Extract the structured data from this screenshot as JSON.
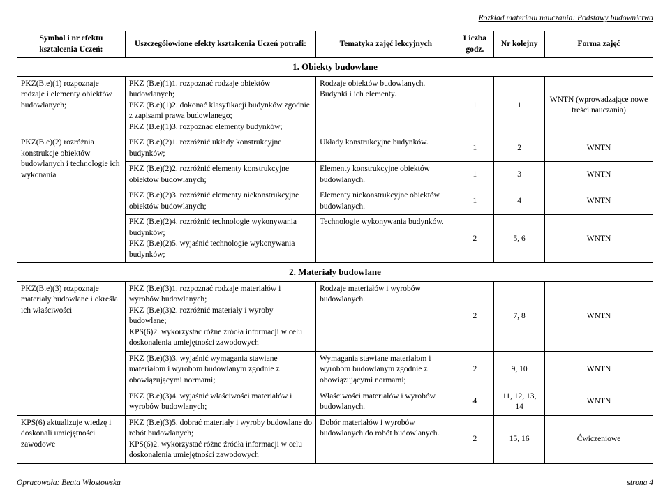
{
  "page_header": "Rozkład materiału nauczania: Podstawy budownictwa",
  "table_headers": {
    "symbol": "Symbol i nr efektu kształcenia Uczeń:",
    "detail": "Uszczegółowione efekty kształcenia Uczeń potrafi:",
    "topic": "Tematyka zajęć lekcyjnych",
    "hours": "Liczba godz.",
    "seq": "Nr kolejny",
    "form": "Forma zajęć"
  },
  "section1_title": "1. Obiekty budowlane",
  "section2_title": "2. Materiały budowlane",
  "s1": {
    "symbol_a": "PKZ(B.e)(1) rozpoznaje rodzaje i elementy obiektów budowlanych;",
    "symbol_b": "PKZ(B.e)(2) rozróżnia konstrukcje obiektów budowlanych i technologie ich wykonania",
    "detail_r1": "PKZ (B.e)(1)1. rozpoznać rodzaje obiektów budowlanych;\nPKZ (B.e)(1)2. dokonać klasyfikacji budynków zgodnie z zapisami prawa budowlanego;\nPKZ (B.e)(1)3. rozpoznać elementy budynków;",
    "detail_r2": "PKZ (B.e)(2)1. rozróżnić układy konstrukcyjne budynków;",
    "detail_r3": "PKZ (B.e)(2)2. rozróżnić elementy konstrukcyjne obiektów budowlanych;",
    "detail_r4": "PKZ (B.e)(2)3. rozróżnić elementy niekonstrukcyjne obiektów budowlanych;",
    "detail_r5": "PKZ (B.e)(2)4. rozróżnić technologie wykonywania budynków;\nPKZ (B.e)(2)5. wyjaśnić technologie wykonywania budynków;",
    "topic_r1": "Rodzaje obiektów budowlanych. Budynki i ich elementy.",
    "topic_r2": "Układy konstrukcyjne budynków.",
    "topic_r3": "Elementy konstrukcyjne obiektów budowlanych.",
    "topic_r4": "Elementy niekonstrukcyjne obiektów budowlanych.",
    "topic_r5": "Technologie wykonywania budynków.",
    "h_r1": "1",
    "h_r2": "1",
    "h_r3": "1",
    "h_r4": "1",
    "h_r5": "2",
    "n_r1": "1",
    "n_r2": "2",
    "n_r3": "3",
    "n_r4": "4",
    "n_r5": "5, 6",
    "f_r1": "WNTN (wprowadzające nowe treści nauczania)",
    "f_r2": "WNTN",
    "f_r3": "WNTN",
    "f_r4": "WNTN",
    "f_r5": "WNTN"
  },
  "s2": {
    "symbol_a": "PKZ(B.e)(3) rozpoznaje materiały budowlane i określa ich właściwości",
    "symbol_b": "KPS(6) aktualizuje wiedzę i doskonali umiejętności zawodowe",
    "detail_r1": "PKZ (B.e)(3)1. rozpoznać rodzaje materiałów i wyrobów budowlanych;\nPKZ (B.e)(3)2. rozróżnić materiały i wyroby budowlane;\nKPS(6)2. wykorzystać różne źródła informacji w celu doskonalenia umiejętności zawodowych",
    "detail_r2": "PKZ (B.e)(3)3. wyjaśnić wymagania stawiane materiałom i wyrobom budowlanym zgodnie z obowiązującymi normami;",
    "detail_r3": "PKZ (B.e)(3)4. wyjaśnić właściwości materiałów i wyrobów budowlanych;",
    "detail_r4": "PKZ (B.e)(3)5. dobrać materiały i wyroby budowlane do robót budowlanych;\nKPS(6)2. wykorzystać różne źródła informacji w celu doskonalenia umiejętności zawodowych",
    "topic_r1": "Rodzaje materiałów i wyrobów budowlanych.",
    "topic_r2": "Wymagania stawiane materiałom i wyrobom budowlanym zgodnie z obowiązującymi normami;",
    "topic_r3": "Właściwości materiałów i wyrobów budowlanych.",
    "topic_r4": "Dobór materiałów i wyrobów budowlanych do robót budowlanych.",
    "h_r1": "2",
    "h_r2": "2",
    "h_r3": "4",
    "h_r4": "2",
    "n_r1": "7, 8",
    "n_r2": "9, 10",
    "n_r3": "11, 12, 13, 14",
    "n_r4": "15, 16",
    "f_r1": "WNTN",
    "f_r2": "WNTN",
    "f_r3": "WNTN",
    "f_r4": "Ćwiczeniowe"
  },
  "footer_left": "Opracowała: Beata Włostowska",
  "footer_right": "strona 4"
}
